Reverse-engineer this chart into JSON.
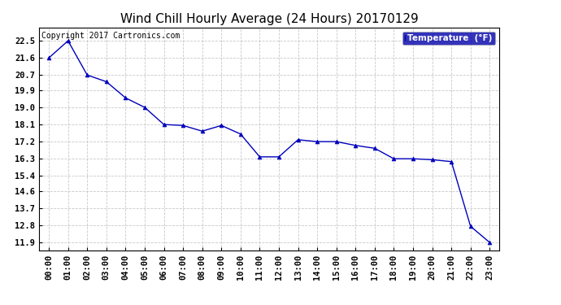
{
  "title": "Wind Chill Hourly Average (24 Hours) 20170129",
  "copyright_text": "Copyright 2017 Cartronics.com",
  "legend_label": "Temperature  (°F)",
  "x_labels": [
    "00:00",
    "01:00",
    "02:00",
    "03:00",
    "04:00",
    "05:00",
    "06:00",
    "07:00",
    "08:00",
    "09:00",
    "10:00",
    "11:00",
    "12:00",
    "13:00",
    "14:00",
    "15:00",
    "16:00",
    "17:00",
    "18:00",
    "19:00",
    "20:00",
    "21:00",
    "22:00",
    "23:00"
  ],
  "y_values": [
    21.6,
    22.5,
    20.7,
    20.35,
    19.5,
    19.0,
    18.1,
    18.05,
    17.75,
    18.05,
    17.6,
    16.4,
    16.4,
    17.3,
    17.2,
    17.2,
    17.0,
    16.85,
    16.3,
    16.3,
    16.25,
    16.15,
    12.75,
    11.9
  ],
  "y_ticks": [
    11.9,
    12.8,
    13.7,
    14.6,
    15.4,
    16.3,
    17.2,
    18.1,
    19.0,
    19.9,
    20.7,
    21.6,
    22.5
  ],
  "ylim": [
    11.5,
    23.2
  ],
  "xlim": [
    -0.5,
    23.5
  ],
  "line_color": "#0000bb",
  "marker_color": "#0000bb",
  "background_color": "#ffffff",
  "plot_bg_color": "#ffffff",
  "grid_color": "#bbbbbb",
  "title_fontsize": 11,
  "tick_fontsize": 7.5,
  "legend_bg": "#0000aa",
  "legend_fg": "#ffffff",
  "copyright_fontsize": 7
}
